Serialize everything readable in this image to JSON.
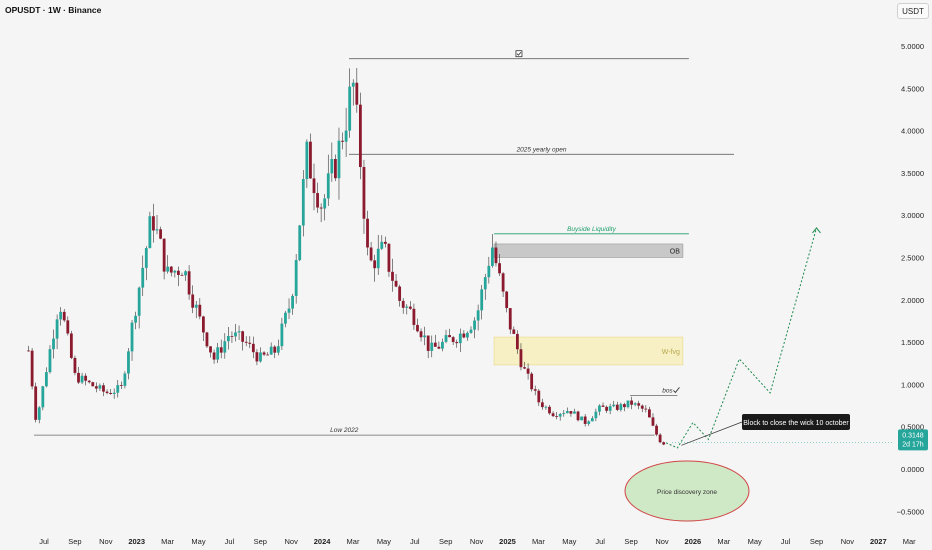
{
  "header": {
    "symbol_title": "OPUSDT · 1W · Binance",
    "currency": "USDT"
  },
  "chart_data": {
    "type": "candlestick",
    "title": "OPUSDT · 1W · Binance",
    "y_axis": {
      "ticks": [
        "5.0000",
        "4.5000",
        "4.0000",
        "3.5000",
        "3.0000",
        "2.5000",
        "2.0000",
        "1.5000",
        "1.0000",
        "0.5000",
        "0.0000",
        "−0.5000"
      ],
      "range": [
        -0.55,
        5.3
      ]
    },
    "x_axis": {
      "ticks": [
        "Jul",
        "Sep",
        "Nov",
        "2023",
        "Mar",
        "May",
        "Jul",
        "Sep",
        "Nov",
        "2024",
        "Mar",
        "May",
        "Jul",
        "Sep",
        "Nov",
        "2025",
        "Mar",
        "May",
        "Jul",
        "Sep",
        "Nov",
        "2026",
        "Mar",
        "May",
        "Jul",
        "Sep",
        "Nov",
        "2027",
        "Mar"
      ],
      "bold_ticks": [
        "2023",
        "2024",
        "2025",
        "2026",
        "2027"
      ]
    },
    "current_price": {
      "value": "0.3148",
      "countdown": "2d 17h",
      "color": "#26a69a"
    },
    "colors": {
      "up": "#26a69a",
      "down": "#8b1a2e",
      "wick": "#333333",
      "background": "#f5f5f5"
    },
    "price_path_approx": [
      {
        "date": "2022-06",
        "close": 1.4
      },
      {
        "date": "2022-06",
        "close": 0.55
      },
      {
        "date": "2022-08",
        "close": 2.0
      },
      {
        "date": "2022-09",
        "close": 1.1
      },
      {
        "date": "2022-11",
        "close": 0.9
      },
      {
        "date": "2022-12",
        "close": 0.95
      },
      {
        "date": "2023-01",
        "close": 2.0
      },
      {
        "date": "2023-02",
        "close": 3.0
      },
      {
        "date": "2023-03",
        "close": 2.3
      },
      {
        "date": "2023-04",
        "close": 2.4
      },
      {
        "date": "2023-05",
        "close": 1.8
      },
      {
        "date": "2023-06",
        "close": 1.3
      },
      {
        "date": "2023-07",
        "close": 1.6
      },
      {
        "date": "2023-08",
        "close": 1.5
      },
      {
        "date": "2023-09",
        "close": 1.3
      },
      {
        "date": "2023-10",
        "close": 1.4
      },
      {
        "date": "2023-11",
        "close": 2.0
      },
      {
        "date": "2023-12",
        "close": 3.7
      },
      {
        "date": "2024-01",
        "close": 3.1
      },
      {
        "date": "2024-02",
        "close": 3.7
      },
      {
        "date": "2024-03",
        "close": 4.55
      },
      {
        "date": "2024-03",
        "close": 3.6
      },
      {
        "date": "2024-04",
        "close": 2.4
      },
      {
        "date": "2024-05",
        "close": 2.6
      },
      {
        "date": "2024-06",
        "close": 2.0
      },
      {
        "date": "2024-07",
        "close": 1.8
      },
      {
        "date": "2024-08",
        "close": 1.4
      },
      {
        "date": "2024-09",
        "close": 1.5
      },
      {
        "date": "2024-10",
        "close": 1.6
      },
      {
        "date": "2024-11",
        "close": 1.8
      },
      {
        "date": "2024-12",
        "close": 2.65
      },
      {
        "date": "2025-01",
        "close": 1.8
      },
      {
        "date": "2025-02",
        "close": 1.2
      },
      {
        "date": "2025-03",
        "close": 0.8
      },
      {
        "date": "2025-04",
        "close": 0.65
      },
      {
        "date": "2025-05",
        "close": 0.7
      },
      {
        "date": "2025-06",
        "close": 0.55
      },
      {
        "date": "2025-07",
        "close": 0.72
      },
      {
        "date": "2025-08",
        "close": 0.72
      },
      {
        "date": "2025-09",
        "close": 0.78
      },
      {
        "date": "2025-10",
        "close": 0.68
      },
      {
        "date": "2025-10",
        "close": 0.45
      },
      {
        "date": "2025-11",
        "close": 0.31
      }
    ],
    "horizontal_levels": [
      {
        "label": "",
        "price": 4.85,
        "icon": "checkbox-icon"
      },
      {
        "label": "2025 yearly open",
        "price": 3.72
      },
      {
        "label": "Buyside Liquidity",
        "price": 2.78,
        "color": "#1e9e6a"
      },
      {
        "label": "bos",
        "price": 0.87,
        "icon": "checkmark-icon"
      },
      {
        "label": "Low 2022",
        "price": 0.4
      }
    ],
    "zones": [
      {
        "label": "OB",
        "top": 2.66,
        "bottom": 2.5,
        "color": "#c8c8c8"
      },
      {
        "label": "W-fvg",
        "top": 1.56,
        "bottom": 1.23,
        "color": "#f6f0c4"
      }
    ],
    "projection_path": [
      {
        "date": "2025-12",
        "value": 0.25
      },
      {
        "date": "2026-01",
        "value": 0.55
      },
      {
        "date": "2026-02",
        "value": 0.35
      },
      {
        "date": "2026-04",
        "value": 1.3
      },
      {
        "date": "2026-06",
        "value": 0.9
      },
      {
        "date": "2026-09",
        "value": 2.85
      }
    ],
    "annotations": {
      "callout": "Block to close the wick 10 october",
      "discovery_zone": "Price discovery zone"
    }
  }
}
